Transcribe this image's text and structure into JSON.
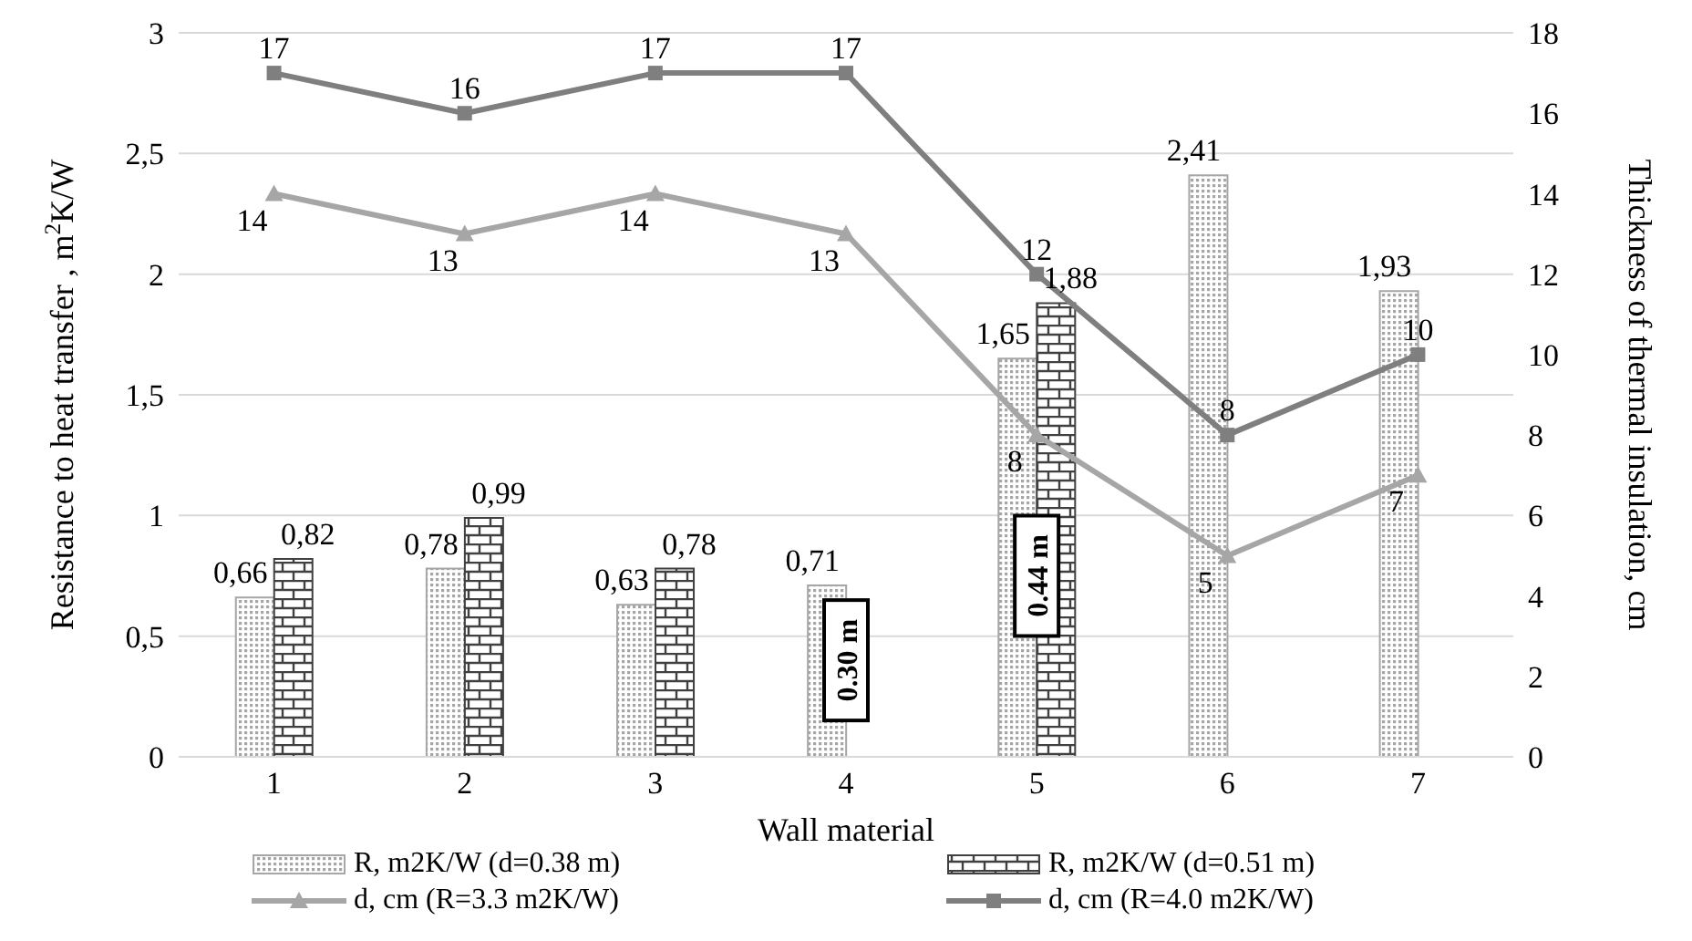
{
  "chart_data": {
    "type": "bar",
    "xlabel": "Wall material",
    "ylabel": "Resistance to heat transfer , m$^{2}$K/W",
    "y2label": "Thickness of thermal insulation, cm",
    "categories": [
      "1",
      "2",
      "3",
      "4",
      "5",
      "6",
      "7"
    ],
    "series": [
      {
        "name": "R, m2K/W (d=0.38 m)",
        "color": "#a6a6a6",
        "values": [
          0.66,
          0.78,
          0.63,
          0.71,
          1.65,
          2.41,
          1.93
        ],
        "value_labels": [
          "0,66",
          "0,78",
          "0,63",
          "0,71",
          "1,65",
          "2,41",
          "1,93"
        ]
      },
      {
        "name": "R, m2K/W (d=0.51 m)",
        "color": "#404040",
        "values": [
          0.82,
          0.99,
          0.78,
          null,
          1.88,
          null,
          null
        ],
        "value_labels": [
          "0,82",
          "0,99",
          "0,78",
          null,
          "1,88",
          null,
          null
        ]
      },
      {
        "name": "d, cm (R=3.3  m2K/W)",
        "type": "line",
        "axis": "y2",
        "color": "#a6a6a6",
        "marker": "triangle",
        "values": [
          14,
          13,
          14,
          13,
          8,
          5,
          7
        ],
        "value_labels": [
          "14",
          "13",
          "14",
          "13",
          "8",
          "5",
          "7"
        ]
      },
      {
        "name": "d, cm (R=4.0  m2K/W)",
        "type": "line",
        "axis": "y2",
        "color": "#7f7f7f",
        "marker": "square",
        "values": [
          17,
          16,
          17,
          17,
          12,
          8,
          10
        ],
        "value_labels": [
          "17",
          "16",
          "17",
          "17",
          "12",
          "8",
          "10"
        ]
      }
    ],
    "ylim": [
      0,
      3
    ],
    "yticks": [
      0,
      {
        "value": 0.5,
        "label": "0,5"
      },
      1,
      {
        "value": 1.5,
        "label": "1,5"
      },
      2,
      {
        "value": 2.5,
        "label": "2,5"
      },
      3
    ],
    "y2lim": [
      0,
      18
    ],
    "y2ticks": [
      0,
      2,
      4,
      6,
      8,
      10,
      12,
      14,
      16,
      18
    ],
    "annotations": [
      {
        "text": "0.30 m",
        "x": "4",
        "y": 0.4
      },
      {
        "text": "0.44 m",
        "x": "5",
        "y": 0.75
      }
    ],
    "grid": "y",
    "legend": "bottom",
    "line_style": "solid"
  }
}
